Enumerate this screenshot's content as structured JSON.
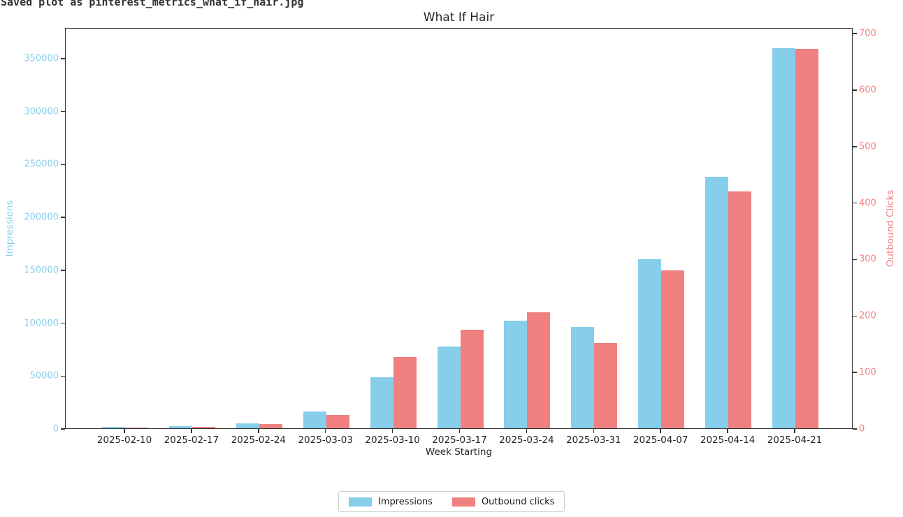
{
  "terminal": {
    "line": "Saved plot as pinterest_metrics_what_if_hair.jpg"
  },
  "chart_data": {
    "type": "bar",
    "title": "What If Hair",
    "xlabel": "Week Starting",
    "categories": [
      "2025-02-10",
      "2025-02-17",
      "2025-02-24",
      "2025-03-03",
      "2025-03-10",
      "2025-03-17",
      "2025-03-24",
      "2025-03-31",
      "2025-04-07",
      "2025-04-14",
      "2025-04-21"
    ],
    "series": [
      {
        "name": "Impressions",
        "axis": "left",
        "color": "#87CEEB",
        "values": [
          1200,
          2000,
          4500,
          16000,
          48000,
          77000,
          102000,
          96000,
          160000,
          238000,
          359000
        ]
      },
      {
        "name": "Outbound clicks",
        "axis": "right",
        "color": "#F08080",
        "values": [
          1,
          3,
          8,
          23,
          126,
          175,
          205,
          151,
          280,
          419,
          672
        ]
      }
    ],
    "left_axis": {
      "label": "Impressions",
      "color": "#87CEEB",
      "ticks": [
        0,
        50000,
        100000,
        150000,
        200000,
        250000,
        300000,
        350000
      ],
      "range": [
        0,
        379000
      ]
    },
    "right_axis": {
      "label": "Outbound Clicks",
      "color": "#F08080",
      "ticks": [
        0,
        100,
        200,
        300,
        400,
        500,
        600,
        700
      ],
      "range": [
        0,
        710
      ]
    },
    "legend": {
      "position": "bottom-center",
      "entries": [
        "Impressions",
        "Outbound clicks"
      ]
    },
    "grid": false
  }
}
